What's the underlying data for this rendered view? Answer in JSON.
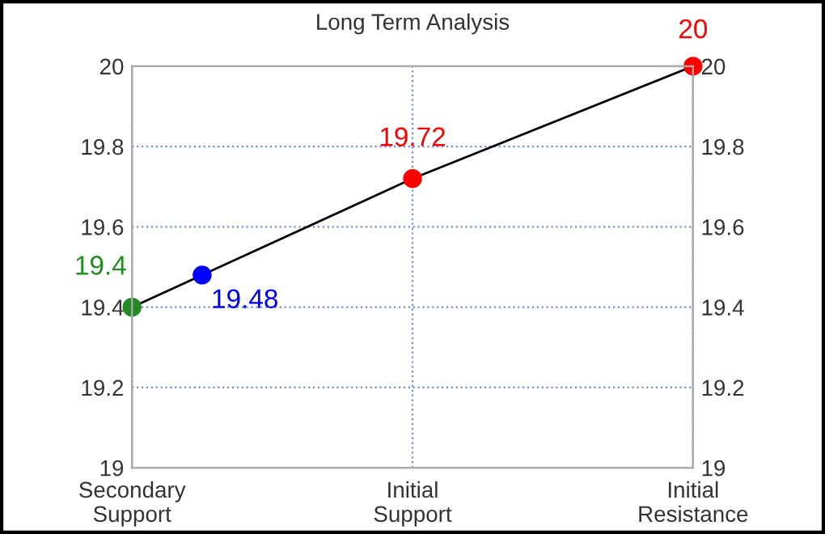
{
  "chart_data": {
    "type": "line",
    "title": "Long Term Analysis",
    "categories": [
      "Secondary\nSupport",
      null,
      null,
      null,
      "Initial\nSupport",
      null,
      null,
      null,
      "Initial\nResistance"
    ],
    "ylim": [
      19,
      20
    ],
    "yticks": [
      19,
      19.2,
      19.4,
      19.6,
      19.8,
      20
    ],
    "y2lim": [
      19,
      20
    ],
    "y2ticks": [
      19,
      19.2,
      19.4,
      19.6,
      19.8,
      20
    ],
    "grid": true,
    "marker": "circle",
    "series": [
      {
        "color": "#000000",
        "values": [
          19.4,
          19.48,
          null,
          null,
          19.72,
          null,
          null,
          null,
          20
        ],
        "colors": [
          "#228b22",
          "#0000ff",
          null,
          null,
          "#ff0000",
          null,
          null,
          null,
          "#ff0000"
        ],
        "value_labels": [
          "19.4",
          "19.48",
          null,
          null,
          "19.72",
          null,
          null,
          null,
          "20"
        ]
      }
    ]
  }
}
